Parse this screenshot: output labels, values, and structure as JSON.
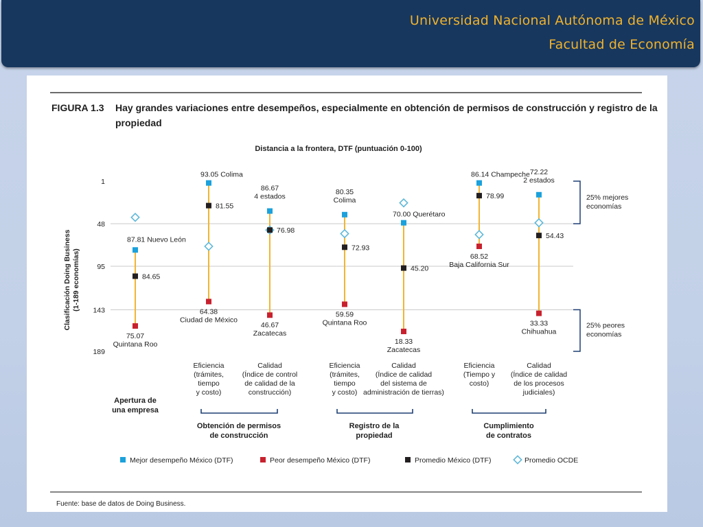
{
  "header": {
    "line1": "Universidad Nacional Autónoma de México",
    "line2": "Facultad de Economía"
  },
  "figure": {
    "number": "FIGURA 1.3",
    "title_line1": "Hay grandes variaciones entre desempeños, especialmente en obtención de permisos de construcción y registro de la",
    "title_line2": "propiedad",
    "subtitle": "Distancia a la frontera, DTF (puntuación 0-100)",
    "ylabel_line1": "Clasificación Doing Business",
    "ylabel_line2": "(1-189 economías)",
    "source": "Fuente: base de datos de Doing Business."
  },
  "brackets": {
    "top": [
      "25% mejores",
      "economías"
    ],
    "bottom": [
      "25% peores",
      "economías"
    ]
  },
  "groups": [
    {
      "label": [
        "Apertura de",
        "una empresa"
      ]
    },
    {
      "label": [
        "Obtención de permisos",
        "de construcción"
      ]
    },
    {
      "label": [
        "Registro de la",
        "propiedad"
      ]
    },
    {
      "label": [
        "Cumplimiento",
        "de contratos"
      ]
    }
  ],
  "colors": {
    "best": "#1ba1dc",
    "worst": "#c8212e",
    "avg": "#231f20",
    "ocde": "#5fb8d8",
    "range_line": "#f1b531",
    "header_bg": "#17375e",
    "header_text": "#f0b22c",
    "grid": "#c8c8c8",
    "bracket": "#1d3f73"
  },
  "chart_data": {
    "type": "scatter",
    "title": "Distancia a la frontera, DTF (puntuación 0-100)",
    "ylabel": "Clasificación Doing Business (1-189 economías)",
    "y_ticks": [
      "1",
      "48",
      "95",
      "143",
      "189"
    ],
    "ylim": [
      1,
      189
    ],
    "y_inverted": true,
    "legend": {
      "placement": "bottom",
      "items": [
        {
          "name": "Mejor desempeño México (DTF)",
          "marker": "square",
          "color": "#1ba1dc"
        },
        {
          "name": "Peor desempeño México (DTF)",
          "marker": "square",
          "color": "#c8212e"
        },
        {
          "name": "Promedio México (DTF)",
          "marker": "square",
          "color": "#231f20"
        },
        {
          "name": "Promedio OCDE",
          "marker": "diamond",
          "color": "#5fb8d8"
        }
      ]
    },
    "categories": [
      {
        "label": [],
        "best": {
          "rank": 77,
          "label": [
            "87.81 Nuevo León"
          ]
        },
        "worst": {
          "rank": 161,
          "label": [
            "75.07",
            "Quintana Roo"
          ]
        },
        "avg": {
          "rank": 106,
          "label": [
            "84.65"
          ]
        },
        "ocde_rank": 41
      },
      {
        "label": [
          "Eficiencia",
          "(trámites,",
          "tiempo",
          "y costo)"
        ],
        "best": {
          "rank": 3,
          "label": [
            "93.05 Colima"
          ]
        },
        "worst": {
          "rank": 134,
          "label": [
            "64.38",
            "Ciudad de México"
          ]
        },
        "avg": {
          "rank": 28,
          "label": [
            "81.55"
          ]
        },
        "ocde_rank": 73
      },
      {
        "label": [
          "Calidad",
          "(Índice de control",
          "de calidad de la",
          "construcción)"
        ],
        "best": {
          "rank": 34,
          "label": [
            "86.67",
            "4 estados"
          ]
        },
        "worst": {
          "rank": 149,
          "label": [
            "46.67",
            "Zacatecas"
          ]
        },
        "avg": {
          "rank": 55,
          "label": [
            "76.98"
          ]
        },
        "ocde_rank": 55
      },
      {
        "label": [
          "Eficiencia",
          "(trámites,",
          "tiempo",
          "y costo)"
        ],
        "best": {
          "rank": 38,
          "label": [
            "80.35",
            "Colima"
          ]
        },
        "worst": {
          "rank": 137,
          "label": [
            "59.59",
            "Quintana Roo"
          ]
        },
        "avg": {
          "rank": 74,
          "label": [
            "72.93"
          ]
        },
        "ocde_rank": 59
      },
      {
        "label": [
          "Calidad",
          "(Índice de calidad",
          "del sistema de",
          "administración de tierras)"
        ],
        "best": {
          "rank": 47,
          "label": [
            "70.00 Querétaro"
          ]
        },
        "worst": {
          "rank": 167,
          "label": [
            "18.33",
            "Zacatecas"
          ]
        },
        "avg": {
          "rank": 97,
          "label": [
            "45.20"
          ]
        },
        "ocde_rank": 25
      },
      {
        "label": [
          "Eficiencia",
          "(Tiempo y",
          "costo)"
        ],
        "best": {
          "rank": 3,
          "label": [
            "86.14 Champeche"
          ]
        },
        "worst": {
          "rank": 73,
          "label": [
            "68.52",
            "Baja California Sur"
          ]
        },
        "avg": {
          "rank": 17,
          "label": [
            "78.99"
          ]
        },
        "ocde_rank": 60
      },
      {
        "label": [
          "Calidad",
          "(Índice de calidad",
          "de los procesos",
          "judiciales)"
        ],
        "best": {
          "rank": 16,
          "label": [
            "72.22",
            "2 estados"
          ]
        },
        "worst": {
          "rank": 147,
          "label": [
            "33.33",
            "Chihuahua"
          ]
        },
        "avg": {
          "rank": 61,
          "label": [
            "54.43"
          ]
        },
        "ocde_rank": 47
      }
    ]
  }
}
